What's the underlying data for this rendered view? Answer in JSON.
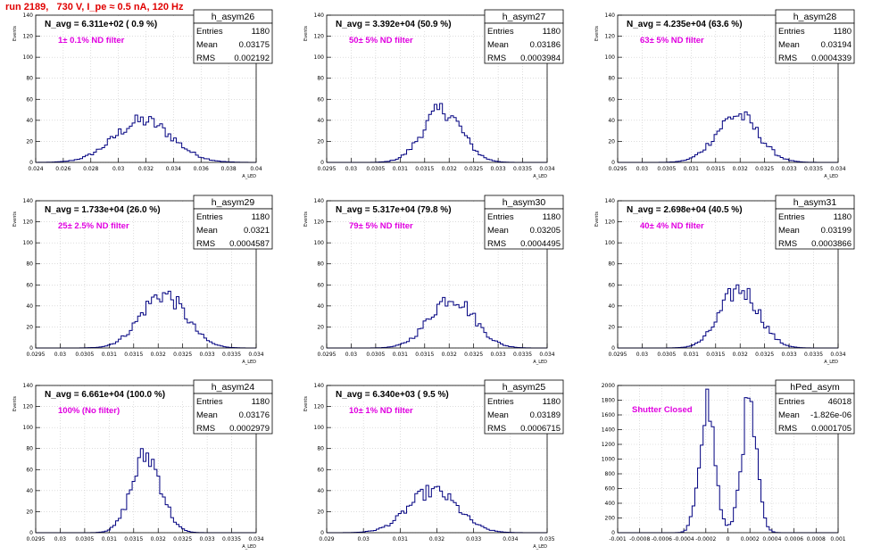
{
  "page_title": "run 2189,   730 V, I_pe ≈ 0.5 nA, 120 Hz",
  "colors": {
    "title": "#e00000",
    "note": "#e000e0",
    "hist": "#000080",
    "grid": "#c8c8c8",
    "axis": "#000000"
  },
  "chart_data": [
    {
      "type": "histogram",
      "name": "h_asym26",
      "navg": "N_avg = 6.311e+02 ( 0.9 %)",
      "note": "1± 0.1% ND filter",
      "stats": {
        "Entries": "1180",
        "Mean": "0.03175",
        "RMS": "0.002192"
      },
      "xlim": [
        0.024,
        0.04
      ],
      "ylim": [
        0,
        140
      ],
      "xticks": [
        "0.024",
        "0.026",
        "0.028",
        "0.03",
        "0.032",
        "0.034",
        "0.036",
        "0.038",
        "0.04"
      ],
      "yticks": [
        "0",
        "20",
        "40",
        "60",
        "80",
        "100",
        "120",
        "140"
      ],
      "xlabel": "A_LED",
      "ylabel": "Events",
      "peak": 45,
      "center": 0.0318,
      "sigma": 0.0021,
      "shape": "single",
      "grid": true
    },
    {
      "type": "histogram",
      "name": "h_asym27",
      "navg": "N_avg = 3.392e+04 (50.9 %)",
      "note": "50± 5% ND filter",
      "stats": {
        "Entries": "1180",
        "Mean": "0.03186",
        "RMS": "0.0003984"
      },
      "xlim": [
        0.0295,
        0.034
      ],
      "ylim": [
        0,
        140
      ],
      "xticks": [
        "0.0295",
        "0.03",
        "0.0305",
        "0.031",
        "0.0315",
        "0.032",
        "0.0325",
        "0.033",
        "0.0335",
        "0.034"
      ],
      "yticks": [
        "0",
        "20",
        "40",
        "60",
        "80",
        "100",
        "120",
        "140"
      ],
      "xlabel": "A_LED",
      "ylabel": "Events",
      "peak": 56,
      "center": 0.03186,
      "sigma": 0.0004,
      "shape": "single",
      "grid": true
    },
    {
      "type": "histogram",
      "name": "h_asym28",
      "navg": "N_avg = 4.235e+04 (63.6 %)",
      "note": "63± 5% ND filter",
      "stats": {
        "Entries": "1180",
        "Mean": "0.03194",
        "RMS": "0.0004339"
      },
      "xlim": [
        0.0295,
        0.034
      ],
      "ylim": [
        0,
        140
      ],
      "xticks": [
        "0.0295",
        "0.03",
        "0.0305",
        "0.031",
        "0.0315",
        "0.032",
        "0.0325",
        "0.033",
        "0.0335",
        "0.034"
      ],
      "yticks": [
        "0",
        "20",
        "40",
        "60",
        "80",
        "100",
        "120",
        "140"
      ],
      "xlabel": "A_LED",
      "ylabel": "Events",
      "peak": 48,
      "center": 0.03194,
      "sigma": 0.00043,
      "shape": "single",
      "grid": true
    },
    {
      "type": "histogram",
      "name": "h_asym29",
      "navg": "N_avg = 1.733e+04 (26.0 %)",
      "note": "25± 2.5% ND filter",
      "stats": {
        "Entries": "1180",
        "Mean": "0.0321",
        "RMS": "0.0004587"
      },
      "xlim": [
        0.0295,
        0.034
      ],
      "ylim": [
        0,
        140
      ],
      "xticks": [
        "0.0295",
        "0.03",
        "0.0305",
        "0.031",
        "0.0315",
        "0.032",
        "0.0325",
        "0.033",
        "0.0335",
        "0.034"
      ],
      "yticks": [
        "0",
        "20",
        "40",
        "60",
        "80",
        "100",
        "120",
        "140"
      ],
      "xlabel": "A_LED",
      "ylabel": "Events",
      "peak": 54,
      "center": 0.0321,
      "sigma": 0.00046,
      "shape": "single",
      "grid": true
    },
    {
      "type": "histogram",
      "name": "h_asym30",
      "navg": "N_avg = 5.317e+04 (79.8 %)",
      "note": "79± 5% ND filter",
      "stats": {
        "Entries": "1180",
        "Mean": "0.03205",
        "RMS": "0.0004495"
      },
      "xlim": [
        0.0295,
        0.034
      ],
      "ylim": [
        0,
        140
      ],
      "xticks": [
        "0.0295",
        "0.03",
        "0.0305",
        "0.031",
        "0.0315",
        "0.032",
        "0.0325",
        "0.033",
        "0.0335",
        "0.034"
      ],
      "yticks": [
        "0",
        "20",
        "40",
        "60",
        "80",
        "100",
        "120",
        "140"
      ],
      "xlabel": "A_LED",
      "ylabel": "Events",
      "peak": 48,
      "center": 0.03205,
      "sigma": 0.00045,
      "shape": "single",
      "grid": true
    },
    {
      "type": "histogram",
      "name": "h_asym31",
      "navg": "N_avg = 2.698e+04 (40.5 %)",
      "note": "40± 4% ND filter",
      "stats": {
        "Entries": "1180",
        "Mean": "0.03199",
        "RMS": "0.0003866"
      },
      "xlim": [
        0.0295,
        0.034
      ],
      "ylim": [
        0,
        140
      ],
      "xticks": [
        "0.0295",
        "0.03",
        "0.0305",
        "0.031",
        "0.0315",
        "0.032",
        "0.0325",
        "0.033",
        "0.0335",
        "0.034"
      ],
      "yticks": [
        "0",
        "20",
        "40",
        "60",
        "80",
        "100",
        "120",
        "140"
      ],
      "xlabel": "A_LED",
      "ylabel": "Events",
      "peak": 60,
      "center": 0.03199,
      "sigma": 0.00039,
      "shape": "single",
      "grid": true
    },
    {
      "type": "histogram",
      "name": "h_asym24",
      "navg": "N_avg = 6.661e+04 (100.0 %)",
      "note": "100% (No filter)",
      "stats": {
        "Entries": "1180",
        "Mean": "0.03176",
        "RMS": "0.0002979"
      },
      "xlim": [
        0.0295,
        0.034
      ],
      "ylim": [
        0,
        140
      ],
      "xticks": [
        "0.0295",
        "0.03",
        "0.0305",
        "0.031",
        "0.0315",
        "0.032",
        "0.0325",
        "0.033",
        "0.0335",
        "0.034"
      ],
      "yticks": [
        "0",
        "20",
        "40",
        "60",
        "80",
        "100",
        "120",
        "140"
      ],
      "xlabel": "A_LED",
      "ylabel": "Events",
      "peak": 80,
      "center": 0.03176,
      "sigma": 0.0003,
      "shape": "single",
      "grid": true
    },
    {
      "type": "histogram",
      "name": "h_asym25",
      "navg": "N_avg = 6.340e+03 ( 9.5 %)",
      "note": "10± 1% ND filter",
      "stats": {
        "Entries": "1180",
        "Mean": "0.03189",
        "RMS": "0.0006715"
      },
      "xlim": [
        0.029,
        0.035
      ],
      "ylim": [
        0,
        140
      ],
      "xticks": [
        "0.029",
        "0.03",
        "0.031",
        "0.032",
        "0.033",
        "0.034",
        "0.035"
      ],
      "yticks": [
        "0",
        "20",
        "40",
        "60",
        "80",
        "100",
        "120",
        "140"
      ],
      "xlabel": "A_LED",
      "ylabel": "Events",
      "peak": 45,
      "center": 0.03189,
      "sigma": 0.00067,
      "shape": "single",
      "grid": true
    },
    {
      "type": "histogram",
      "name": "hPed_asym",
      "navg": "",
      "note": "Shutter Closed",
      "stats": {
        "Entries": "46018",
        "Mean": "-1.826e-06",
        "RMS": "0.0001705"
      },
      "xlim": [
        -0.001,
        0.001
      ],
      "ylim": [
        0,
        2000
      ],
      "xticks": [
        "-0.001",
        "-0.0008",
        "-0.0006",
        "-0.0004",
        "-0.0002",
        "0",
        "0.0002",
        "0.0004",
        "0.0006",
        "0.0008",
        "0.001"
      ],
      "yticks": [
        "0",
        "200",
        "400",
        "600",
        "800",
        "1000",
        "1200",
        "1400",
        "1600",
        "1800",
        "2000"
      ],
      "xlabel": "",
      "ylabel": "",
      "peak": 1950,
      "center": 0,
      "sigma": 7e-05,
      "shape": "double",
      "grid": true
    }
  ]
}
